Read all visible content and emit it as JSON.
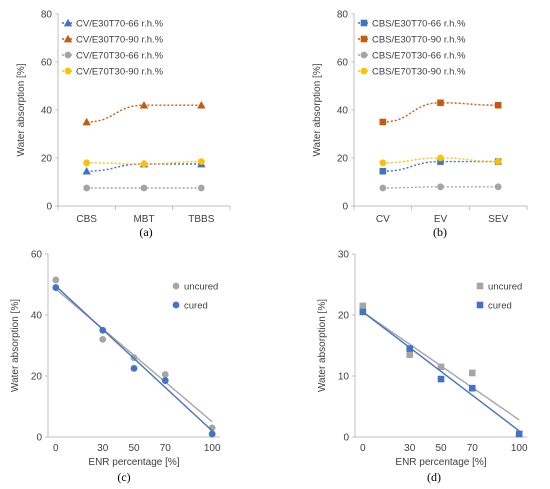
{
  "chart_data": [
    {
      "type": "line",
      "panel_label": "(a)",
      "categories": [
        "CBS",
        "MBT",
        "TBBS"
      ],
      "ylabel": "Water absorption [%]",
      "xlabel": "",
      "ylim": [
        0,
        80
      ],
      "yticks": [
        0,
        20,
        40,
        60,
        80
      ],
      "legend_position": "top-left",
      "series": [
        {
          "name": "CV/E30T70-66 r.h.%",
          "values": [
            14.5,
            17.5,
            17.5
          ],
          "color": "#4472C4",
          "marker": "triangle"
        },
        {
          "name": "CV/E30T70-90 r.h.%",
          "values": [
            35,
            42,
            42
          ],
          "color": "#C55A11",
          "marker": "triangle"
        },
        {
          "name": "CV/E70T30-66 r.h.%",
          "values": [
            7.5,
            7.5,
            7.5
          ],
          "color": "#A5A5A5",
          "marker": "circle"
        },
        {
          "name": "CV/E70T30-90 r.h.%",
          "values": [
            18,
            17.5,
            18.5
          ],
          "color": "#FFC000",
          "marker": "circle"
        }
      ]
    },
    {
      "type": "line",
      "panel_label": "(b)",
      "categories": [
        "CV",
        "EV",
        "SEV"
      ],
      "ylabel": "Water absorption [%]",
      "xlabel": "",
      "ylim": [
        0,
        80
      ],
      "yticks": [
        0,
        20,
        40,
        60,
        80
      ],
      "legend_position": "top-left",
      "series": [
        {
          "name": "CBS/E30T70-66 r.h.%",
          "values": [
            14.5,
            18.5,
            18.5
          ],
          "color": "#4472C4",
          "marker": "square"
        },
        {
          "name": "CBS/E30T70-90 r.h.%",
          "values": [
            35,
            43,
            42
          ],
          "color": "#C55A11",
          "marker": "square"
        },
        {
          "name": "CBS/E70T30-66 r.h.%",
          "values": [
            7.5,
            8,
            8
          ],
          "color": "#A5A5A5",
          "marker": "circle"
        },
        {
          "name": "CBS/E70T30-90 r.h.%",
          "values": [
            18,
            20,
            18.5
          ],
          "color": "#FFC000",
          "marker": "circle"
        }
      ]
    },
    {
      "type": "scatter",
      "panel_label": "(c)",
      "xlabel": "ENR percentage [%]",
      "ylabel": "Water absorption [%]",
      "xlim": [
        -5,
        105
      ],
      "ylim": [
        0,
        60
      ],
      "xticks": [
        0,
        30,
        50,
        70,
        100
      ],
      "yticks": [
        0,
        20,
        40,
        60
      ],
      "legend_position": "top-right",
      "series": [
        {
          "name": "uncured",
          "marker": "circle",
          "color": "#A5A5A5",
          "x": [
            0,
            30,
            50,
            70,
            100
          ],
          "y": [
            51.5,
            32,
            26,
            20.5,
            3
          ],
          "trend": [
            [
              0,
              48.5
            ],
            [
              100,
              5
            ]
          ]
        },
        {
          "name": "cured",
          "marker": "circle",
          "color": "#4472C4",
          "x": [
            0,
            30,
            50,
            70,
            100
          ],
          "y": [
            49,
            35,
            22.5,
            18.5,
            1
          ],
          "trend": [
            [
              0,
              49.5
            ],
            [
              100,
              2
            ]
          ]
        }
      ]
    },
    {
      "type": "scatter",
      "panel_label": "(d)",
      "xlabel": "ENR percentage [%]",
      "ylabel": "Water absorption [%]",
      "xlim": [
        -5,
        105
      ],
      "ylim": [
        0,
        30
      ],
      "xticks": [
        0,
        30,
        50,
        70,
        100
      ],
      "yticks": [
        0,
        10,
        20,
        30
      ],
      "legend_position": "top-right",
      "series": [
        {
          "name": "uncured",
          "marker": "square",
          "color": "#A5A5A5",
          "x": [
            0,
            30,
            50,
            70,
            100
          ],
          "y": [
            21.5,
            13.5,
            11.5,
            10.5,
            0.5
          ],
          "trend": [
            [
              0,
              20.5
            ],
            [
              100,
              2.8
            ]
          ]
        },
        {
          "name": "cured",
          "marker": "square",
          "color": "#4472C4",
          "x": [
            0,
            30,
            50,
            70,
            100
          ],
          "y": [
            20.5,
            14.5,
            9.5,
            8,
            0.5
          ],
          "trend": [
            [
              0,
              20.5
            ],
            [
              100,
              1
            ]
          ]
        }
      ]
    }
  ]
}
